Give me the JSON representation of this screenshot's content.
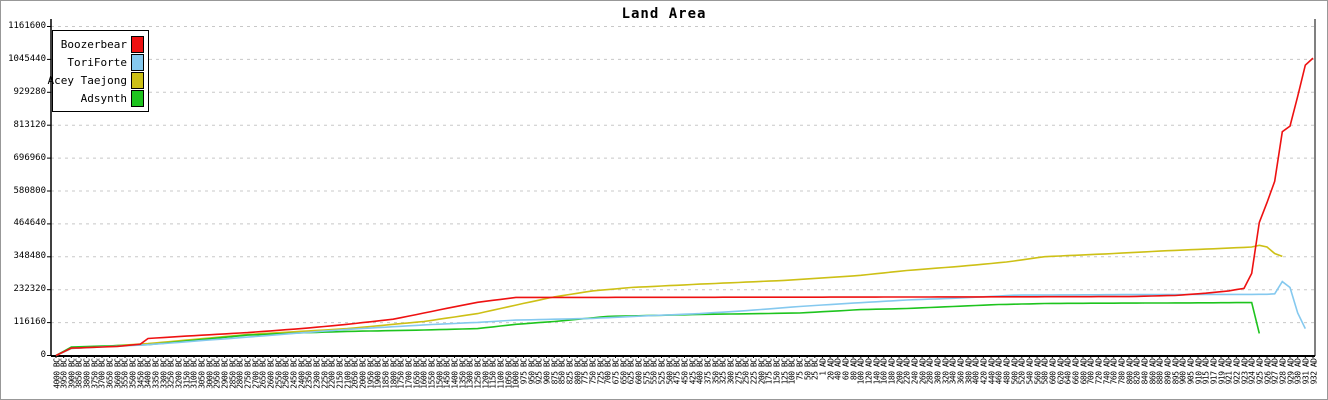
{
  "title": "Land Area",
  "colors": {
    "background": "#ffffff",
    "axis": "#000000",
    "gridline": "#c8c8c8",
    "boozerbear": "#ee1111",
    "toriforte": "#85c9ef",
    "acey_taejong": "#cdc016",
    "adsynth": "#1ec41e"
  },
  "legend": {
    "items": [
      {
        "label": "Boozerbear",
        "color": "#ee1111"
      },
      {
        "label": "ToriForte",
        "color": "#85c9ef"
      },
      {
        "label": "Acey Taejong",
        "color": "#cdc016"
      },
      {
        "label": "Adsynth",
        "color": "#1ec41e"
      }
    ]
  },
  "chart_data": {
    "type": "line",
    "title": "Land Area",
    "xlabel": "",
    "ylabel": "",
    "ylim": [
      0,
      1161600
    ],
    "grid": "horizontal-dashed",
    "legend_position": "top-left",
    "y_tick_labels": [
      "0",
      "116160",
      "232320",
      "348480",
      "464640",
      "580800",
      "696960",
      "813120",
      "929280",
      "1045440",
      "1161600"
    ],
    "y_tick_values": [
      0,
      116160,
      232320,
      348480,
      464640,
      580800,
      696960,
      813120,
      929280,
      1045440,
      1161600
    ],
    "x_labels": [
      "4000 BC",
      "3950 BC",
      "3900 BC",
      "3850 BC",
      "3800 BC",
      "3750 BC",
      "3700 BC",
      "3650 BC",
      "3600 BC",
      "3550 BC",
      "3500 BC",
      "3450 BC",
      "3400 BC",
      "3350 BC",
      "3300 BC",
      "3250 BC",
      "3200 BC",
      "3150 BC",
      "3100 BC",
      "3050 BC",
      "3000 BC",
      "2950 BC",
      "2900 BC",
      "2850 BC",
      "2800 BC",
      "2750 BC",
      "2700 BC",
      "2650 BC",
      "2600 BC",
      "2550 BC",
      "2500 BC",
      "2450 BC",
      "2400 BC",
      "2350 BC",
      "2300 BC",
      "2250 BC",
      "2200 BC",
      "2150 BC",
      "2100 BC",
      "2050 BC",
      "2000 BC",
      "1950 BC",
      "1900 BC",
      "1850 BC",
      "1800 BC",
      "1750 BC",
      "1700 BC",
      "1650 BC",
      "1600 BC",
      "1550 BC",
      "1500 BC",
      "1450 BC",
      "1400 BC",
      "1350 BC",
      "1300 BC",
      "1250 BC",
      "1200 BC",
      "1150 BC",
      "1100 BC",
      "1050 BC",
      "1000 BC",
      "975 BC",
      "950 BC",
      "925 BC",
      "900 BC",
      "875 BC",
      "850 BC",
      "825 BC",
      "800 BC",
      "775 BC",
      "750 BC",
      "725 BC",
      "700 BC",
      "675 BC",
      "650 BC",
      "625 BC",
      "600 BC",
      "575 BC",
      "550 BC",
      "525 BC",
      "500 BC",
      "475 BC",
      "450 BC",
      "425 BC",
      "400 BC",
      "375 BC",
      "350 BC",
      "325 BC",
      "300 BC",
      "275 BC",
      "250 BC",
      "225 BC",
      "200 BC",
      "175 BC",
      "150 BC",
      "125 BC",
      "100 BC",
      "75 BC",
      "50 BC",
      "25 BC",
      "1 AD",
      "20 AD",
      "40 AD",
      "60 AD",
      "80 AD",
      "100 AD",
      "120 AD",
      "140 AD",
      "160 AD",
      "180 AD",
      "200 AD",
      "220 AD",
      "240 AD",
      "260 AD",
      "280 AD",
      "300 AD",
      "320 AD",
      "340 AD",
      "360 AD",
      "380 AD",
      "400 AD",
      "420 AD",
      "440 AD",
      "460 AD",
      "480 AD",
      "500 AD",
      "520 AD",
      "540 AD",
      "560 AD",
      "580 AD",
      "600 AD",
      "620 AD",
      "640 AD",
      "660 AD",
      "680 AD",
      "700 AD",
      "720 AD",
      "740 AD",
      "760 AD",
      "780 AD",
      "800 AD",
      "820 AD",
      "840 AD",
      "860 AD",
      "880 AD",
      "890 AD",
      "895 AD",
      "900 AD",
      "905 AD",
      "910 AD",
      "915 AD",
      "917 AD",
      "919 AD",
      "921 AD",
      "922 AD",
      "923 AD",
      "924 AD",
      "925 AD",
      "926 AD",
      "927 AD",
      "928 AD",
      "929 AD",
      "930 AD",
      "931 AD",
      "932 AD"
    ],
    "series": [
      {
        "name": "Acey Taejong",
        "color": "#cdc016",
        "points": [
          [
            0,
            0
          ],
          [
            2,
            25000
          ],
          [
            12,
            42000
          ],
          [
            25,
            74000
          ],
          [
            38,
            95000
          ],
          [
            48,
            120000
          ],
          [
            55,
            148000
          ],
          [
            60,
            178000
          ],
          [
            65,
            207000
          ],
          [
            70,
            228000
          ],
          [
            75,
            240000
          ],
          [
            84,
            252000
          ],
          [
            95,
            265000
          ],
          [
            105,
            283000
          ],
          [
            111,
            300000
          ],
          [
            118,
            315000
          ],
          [
            124,
            330000
          ],
          [
            129,
            349000
          ],
          [
            138,
            360000
          ],
          [
            145,
            370000
          ],
          [
            152,
            378000
          ],
          [
            156,
            383000
          ],
          [
            157,
            389000
          ],
          [
            158,
            383000
          ],
          [
            159,
            360000
          ],
          [
            160,
            350000
          ]
        ]
      },
      {
        "name": "Adsynth",
        "color": "#1ec41e",
        "points": [
          [
            0,
            0
          ],
          [
            2,
            30000
          ],
          [
            12,
            38000
          ],
          [
            25,
            72000
          ],
          [
            32,
            80000
          ],
          [
            38,
            85000
          ],
          [
            48,
            90000
          ],
          [
            55,
            95000
          ],
          [
            60,
            110000
          ],
          [
            65,
            120000
          ],
          [
            72,
            138000
          ],
          [
            84,
            145000
          ],
          [
            97,
            150000
          ],
          [
            105,
            162000
          ],
          [
            111,
            166000
          ],
          [
            123,
            180000
          ],
          [
            130,
            184000
          ],
          [
            150,
            186000
          ],
          [
            156,
            187000
          ],
          [
            157,
            78000
          ]
        ]
      },
      {
        "name": "ToriForte",
        "color": "#85c9ef",
        "points": [
          [
            0,
            0
          ],
          [
            2,
            25000
          ],
          [
            12,
            38000
          ],
          [
            25,
            65000
          ],
          [
            32,
            80000
          ],
          [
            38,
            92000
          ],
          [
            48,
            108000
          ],
          [
            55,
            117000
          ],
          [
            60,
            125000
          ],
          [
            65,
            128000
          ],
          [
            70,
            131000
          ],
          [
            77,
            140000
          ],
          [
            84,
            148000
          ],
          [
            90,
            158000
          ],
          [
            97,
            173000
          ],
          [
            104,
            185000
          ],
          [
            111,
            196000
          ],
          [
            118,
            203000
          ],
          [
            125,
            213000
          ],
          [
            140,
            215000
          ],
          [
            158,
            216000
          ],
          [
            159,
            218000
          ],
          [
            160,
            261000
          ],
          [
            161,
            240000
          ],
          [
            162,
            150000
          ],
          [
            163,
            95000
          ]
        ]
      },
      {
        "name": "Boozerbear",
        "color": "#ee1111",
        "points": [
          [
            0,
            0
          ],
          [
            2,
            26000
          ],
          [
            8,
            32000
          ],
          [
            11,
            40000
          ],
          [
            12,
            60000
          ],
          [
            18,
            70000
          ],
          [
            25,
            81000
          ],
          [
            32,
            95000
          ],
          [
            38,
            110000
          ],
          [
            44,
            128000
          ],
          [
            48,
            150000
          ],
          [
            52,
            172000
          ],
          [
            55,
            188000
          ],
          [
            60,
            205000
          ],
          [
            100,
            206000
          ],
          [
            140,
            208000
          ],
          [
            146,
            212000
          ],
          [
            150,
            220000
          ],
          [
            153,
            228000
          ],
          [
            155,
            237000
          ],
          [
            156,
            290000
          ],
          [
            157,
            470000
          ],
          [
            158,
            540000
          ],
          [
            159,
            615000
          ],
          [
            160,
            790000
          ],
          [
            161,
            810000
          ],
          [
            162,
            915000
          ],
          [
            163,
            1025000
          ],
          [
            164,
            1050000
          ]
        ]
      }
    ]
  }
}
